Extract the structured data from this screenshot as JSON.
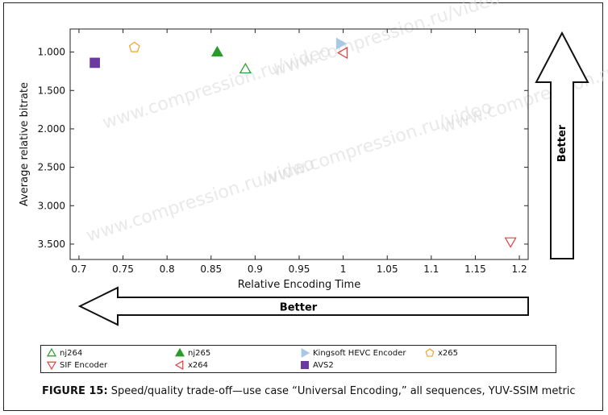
{
  "chart_data": {
    "type": "scatter",
    "title": "",
    "xlabel": "Relative Encoding Time",
    "ylabel": "Average relative bitrate",
    "xlim": [
      0.69,
      1.21
    ],
    "ylim": [
      0.7,
      3.7
    ],
    "y_reversed": true,
    "x_ticks": [
      "0.7",
      "0.75",
      "0.8",
      "0.85",
      "0.9",
      "0.95",
      "1",
      "1.05",
      "1.1",
      "1.15",
      "1.2"
    ],
    "y_ticks": [
      "1.000",
      "1.500",
      "2.000",
      "2.500",
      "3.000",
      "3.500"
    ],
    "grid": false,
    "legend_position": "bottom",
    "series": [
      {
        "name": "nj264",
        "marker": "triangle-up-open",
        "color": "#2a9a2a",
        "x": [
          0.889
        ],
        "y": [
          1.22
        ]
      },
      {
        "name": "nj265",
        "marker": "triangle-up-filled",
        "color": "#2a9a2a",
        "x": [
          0.857
        ],
        "y": [
          1.0
        ]
      },
      {
        "name": "Kingsoft HEVC Encoder",
        "marker": "triangle-right-filled",
        "color": "#a8c8e8",
        "x": [
          0.997
        ],
        "y": [
          0.89
        ]
      },
      {
        "name": "x265",
        "marker": "pentagon-open",
        "color": "#f0a030",
        "x": [
          0.763
        ],
        "y": [
          0.94
        ]
      },
      {
        "name": "SIF Encoder",
        "marker": "triangle-down-open",
        "color": "#e04040",
        "x": [
          1.19
        ],
        "y": [
          3.47
        ]
      },
      {
        "name": "x264",
        "marker": "triangle-left-open",
        "color": "#e04040",
        "x": [
          1.0
        ],
        "y": [
          1.01
        ]
      },
      {
        "name": "AVS2",
        "marker": "square-filled",
        "color": "#6a3aa0",
        "x": [
          0.718
        ],
        "y": [
          1.14
        ]
      }
    ]
  },
  "annotations": {
    "better_horizontal": "Better",
    "better_vertical": "Better"
  },
  "watermark": "www.compression.ru/video",
  "caption": {
    "label": "FIGURE 15:",
    "text": " Speed/quality trade-off—use case “Universal Encoding,” all sequences, YUV-SSIM metric"
  }
}
